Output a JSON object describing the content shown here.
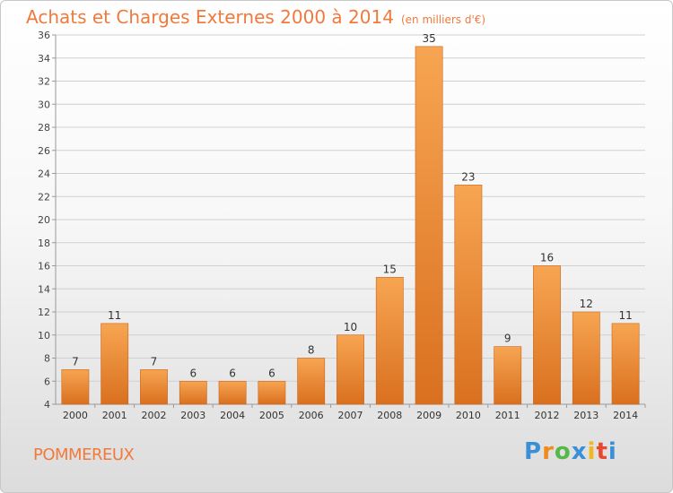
{
  "header": {
    "title": "Achats et Charges Externes 2000 à 2014",
    "subtitle": "(en milliers d'€)"
  },
  "footer": {
    "commune": "POMMEREUX",
    "logo_letters": [
      "P",
      "r",
      "o",
      "x",
      "i",
      "t",
      "i"
    ]
  },
  "colors": {
    "accent": "#f07a3c",
    "bar_top": "#f7a552",
    "bar_bottom": "#d9701f",
    "grid": "#d0d0d0"
  },
  "chart_data": {
    "type": "bar",
    "categories": [
      "2000",
      "2001",
      "2002",
      "2003",
      "2004",
      "2005",
      "2006",
      "2007",
      "2008",
      "2009",
      "2010",
      "2011",
      "2012",
      "2013",
      "2014"
    ],
    "values": [
      7,
      11,
      7,
      6,
      6,
      6,
      8,
      10,
      15,
      35,
      23,
      9,
      16,
      12,
      11
    ],
    "ylim": [
      4,
      36
    ],
    "yticks": [
      4,
      6,
      8,
      10,
      12,
      14,
      16,
      18,
      20,
      22,
      24,
      26,
      28,
      30,
      32,
      34,
      36
    ],
    "grid": true,
    "legend": "none"
  }
}
